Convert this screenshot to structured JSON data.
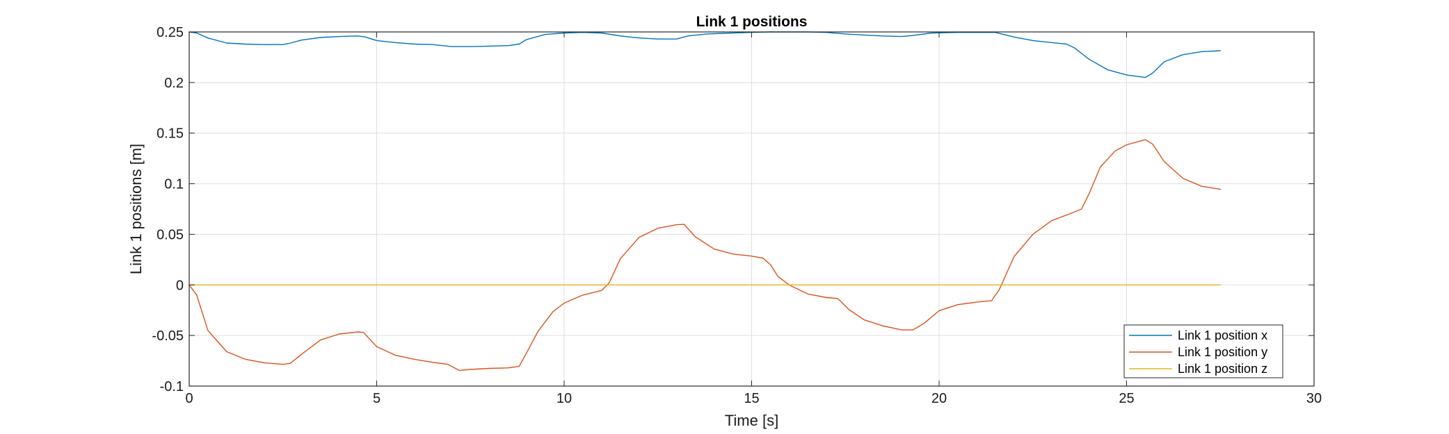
{
  "chart_data": {
    "type": "line",
    "title": "Link 1 positions",
    "xlabel": "Time [s]",
    "ylabel": "Link 1 positions [m]",
    "xlim": [
      0,
      30
    ],
    "ylim": [
      -0.1,
      0.25
    ],
    "xticks": [
      0,
      5,
      10,
      15,
      20,
      25,
      30
    ],
    "xtick_labels": [
      "0",
      "5",
      "10",
      "15",
      "20",
      "25",
      "30"
    ],
    "yticks": [
      -0.1,
      -0.05,
      0,
      0.05,
      0.1,
      0.15,
      0.2,
      0.25
    ],
    "ytick_labels": [
      "-0.1",
      "-0.05",
      "0",
      "0.05",
      "0.1",
      "0.15",
      "0.2",
      "0.25"
    ],
    "grid": true,
    "legend_position": "bottom-right",
    "series": [
      {
        "name": "Link 1 position x",
        "color": "#0072BD",
        "points": [
          [
            0,
            0.25
          ],
          [
            0.2,
            0.249
          ],
          [
            0.5,
            0.244
          ],
          [
            1,
            0.239
          ],
          [
            1.5,
            0.238
          ],
          [
            2,
            0.2375
          ],
          [
            2.5,
            0.2375
          ],
          [
            2.7,
            0.239
          ],
          [
            3,
            0.242
          ],
          [
            3.5,
            0.2445
          ],
          [
            4,
            0.2455
          ],
          [
            4.5,
            0.246
          ],
          [
            4.7,
            0.245
          ],
          [
            5,
            0.2415
          ],
          [
            5.5,
            0.2395
          ],
          [
            6,
            0.238
          ],
          [
            6.5,
            0.2375
          ],
          [
            7,
            0.2355
          ],
          [
            7.5,
            0.2355
          ],
          [
            8,
            0.236
          ],
          [
            8.5,
            0.2365
          ],
          [
            8.8,
            0.238
          ],
          [
            9,
            0.2425
          ],
          [
            9.5,
            0.2475
          ],
          [
            10,
            0.249
          ],
          [
            10.5,
            0.2495
          ],
          [
            11,
            0.249
          ],
          [
            11.5,
            0.246
          ],
          [
            12,
            0.244
          ],
          [
            12.5,
            0.243
          ],
          [
            13,
            0.243
          ],
          [
            13.3,
            0.246
          ],
          [
            13.8,
            0.248
          ],
          [
            14.5,
            0.249
          ],
          [
            15,
            0.2495
          ],
          [
            15.5,
            0.25
          ],
          [
            16,
            0.25
          ],
          [
            16.5,
            0.25
          ],
          [
            17,
            0.2495
          ],
          [
            17.5,
            0.248
          ],
          [
            18,
            0.247
          ],
          [
            18.5,
            0.246
          ],
          [
            19,
            0.2455
          ],
          [
            19.3,
            0.2465
          ],
          [
            19.8,
            0.249
          ],
          [
            20.5,
            0.2495
          ],
          [
            21,
            0.2495
          ],
          [
            21.5,
            0.2495
          ],
          [
            22,
            0.245
          ],
          [
            22.5,
            0.2415
          ],
          [
            23,
            0.2395
          ],
          [
            23.4,
            0.238
          ],
          [
            23.6,
            0.2345
          ],
          [
            24,
            0.223
          ],
          [
            24.5,
            0.2125
          ],
          [
            25,
            0.2075
          ],
          [
            25.5,
            0.205
          ],
          [
            25.7,
            0.2095
          ],
          [
            26,
            0.2205
          ],
          [
            26.5,
            0.2275
          ],
          [
            27,
            0.2305
          ],
          [
            27.5,
            0.2315
          ]
        ]
      },
      {
        "name": "Link 1 position y",
        "color": "#D95319",
        "points": [
          [
            0,
            0
          ],
          [
            0.2,
            -0.01
          ],
          [
            0.5,
            -0.045
          ],
          [
            1,
            -0.066
          ],
          [
            1.5,
            -0.0735
          ],
          [
            2,
            -0.077
          ],
          [
            2.5,
            -0.0785
          ],
          [
            2.7,
            -0.0775
          ],
          [
            3,
            -0.0685
          ],
          [
            3.5,
            -0.0545
          ],
          [
            4,
            -0.0485
          ],
          [
            4.5,
            -0.0465
          ],
          [
            4.65,
            -0.047
          ],
          [
            5,
            -0.061
          ],
          [
            5.5,
            -0.0695
          ],
          [
            6,
            -0.0735
          ],
          [
            6.5,
            -0.0765
          ],
          [
            6.9,
            -0.0785
          ],
          [
            7.2,
            -0.0845
          ],
          [
            7.5,
            -0.0835
          ],
          [
            8,
            -0.0825
          ],
          [
            8.5,
            -0.082
          ],
          [
            8.8,
            -0.0805
          ],
          [
            9,
            -0.067
          ],
          [
            9.3,
            -0.046
          ],
          [
            9.7,
            -0.0265
          ],
          [
            10,
            -0.018
          ],
          [
            10.5,
            -0.01
          ],
          [
            11,
            -0.0055
          ],
          [
            11.2,
            0.002
          ],
          [
            11.5,
            0.026
          ],
          [
            12,
            0.047
          ],
          [
            12.5,
            0.056
          ],
          [
            13,
            0.0595
          ],
          [
            13.2,
            0.0598
          ],
          [
            13.5,
            0.0475
          ],
          [
            14,
            0.0355
          ],
          [
            14.5,
            0.0305
          ],
          [
            15,
            0.0285
          ],
          [
            15.3,
            0.0265
          ],
          [
            15.5,
            0.02
          ],
          [
            15.7,
            0.0085
          ],
          [
            16,
            0.0
          ],
          [
            16.5,
            -0.009
          ],
          [
            17,
            -0.0125
          ],
          [
            17.3,
            -0.0135
          ],
          [
            17.6,
            -0.0245
          ],
          [
            18,
            -0.0345
          ],
          [
            18.5,
            -0.0405
          ],
          [
            19,
            -0.0445
          ],
          [
            19.3,
            -0.0445
          ],
          [
            19.6,
            -0.038
          ],
          [
            20,
            -0.0255
          ],
          [
            20.5,
            -0.0195
          ],
          [
            21,
            -0.017
          ],
          [
            21.4,
            -0.0155
          ],
          [
            21.6,
            -0.005
          ],
          [
            22,
            0.028
          ],
          [
            22.5,
            0.05
          ],
          [
            23,
            0.0635
          ],
          [
            23.5,
            0.0705
          ],
          [
            23.8,
            0.075
          ],
          [
            24,
            0.09
          ],
          [
            24.3,
            0.1165
          ],
          [
            24.7,
            0.1325
          ],
          [
            25,
            0.1385
          ],
          [
            25.5,
            0.1435
          ],
          [
            25.7,
            0.139
          ],
          [
            26,
            0.122
          ],
          [
            26.5,
            0.1055
          ],
          [
            27,
            0.0975
          ],
          [
            27.5,
            0.0945
          ]
        ]
      },
      {
        "name": "Link 1 position z",
        "color": "#EDB120",
        "points": [
          [
            0,
            0
          ],
          [
            27.5,
            0
          ]
        ]
      }
    ]
  }
}
